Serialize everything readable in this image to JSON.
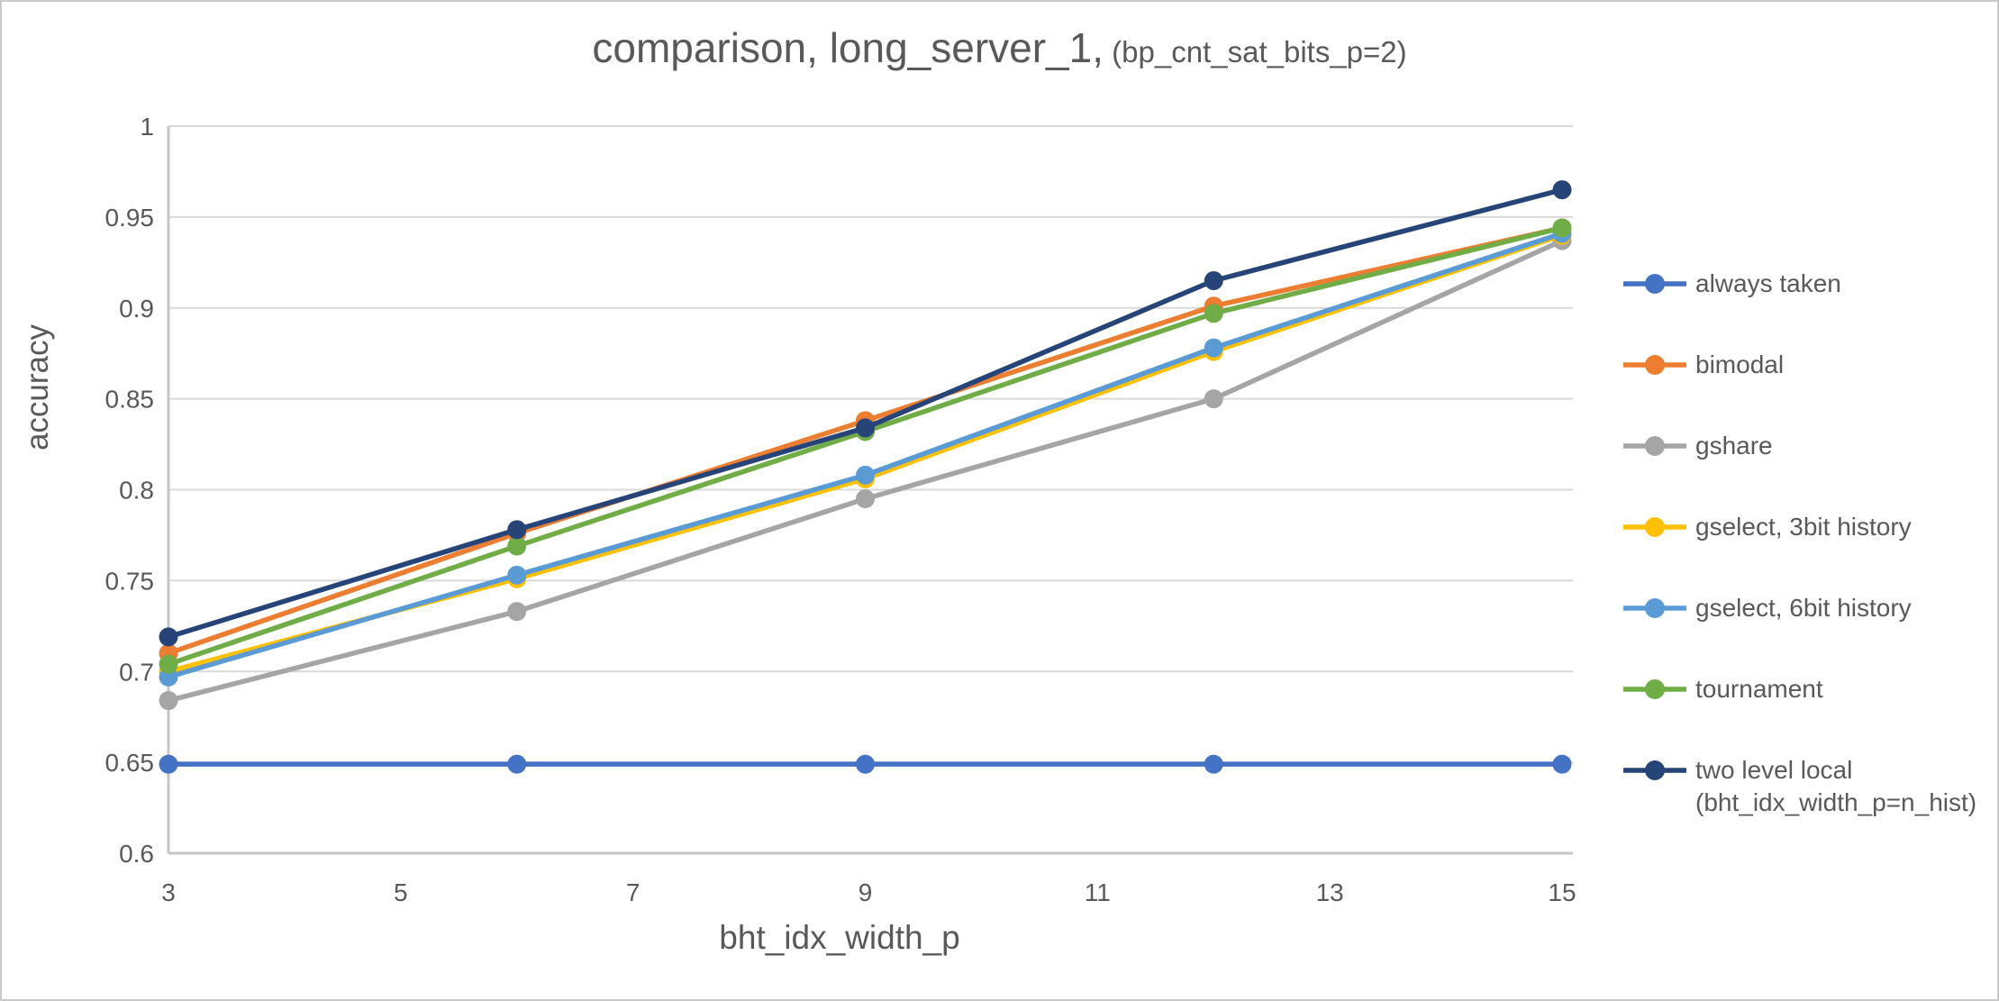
{
  "window": {
    "background": "#ffffff",
    "border_color": "#c9c9c9"
  },
  "title": {
    "main": "comparison, long_server_1,",
    "suffix": " (bp_cnt_sat_bits_p=2)"
  },
  "chart_data": {
    "type": "line",
    "title": "comparison, long_server_1, (bp_cnt_sat_bits_p=2)",
    "xlabel": "bht_idx_width_p",
    "ylabel": "accuracy",
    "xlim": [
      3,
      15
    ],
    "ylim": [
      0.6,
      1.0
    ],
    "grid": "horizontal",
    "legend_position": "right",
    "x": [
      3,
      6,
      9,
      12,
      15
    ],
    "x_tick_labels": [
      "3",
      "5",
      "7",
      "9",
      "11",
      "13",
      "15"
    ],
    "x_tick_values": [
      3,
      5,
      7,
      9,
      11,
      13,
      15
    ],
    "y_tick_labels": [
      "1",
      "0.95",
      "0.9",
      "0.85",
      "0.8",
      "0.75",
      "0.7",
      "0.65",
      "0.6"
    ],
    "y_tick_values": [
      1.0,
      0.95,
      0.9,
      0.85,
      0.8,
      0.75,
      0.7,
      0.65,
      0.6
    ],
    "series": [
      {
        "name": "always taken",
        "color": "#4472C4",
        "values": [
          0.649,
          0.649,
          0.649,
          0.649,
          0.649
        ]
      },
      {
        "name": "bimodal",
        "color": "#ED7D31",
        "values": [
          0.71,
          0.776,
          0.838,
          0.901,
          0.944
        ]
      },
      {
        "name": "gshare",
        "color": "#A5A5A5",
        "values": [
          0.684,
          0.733,
          0.795,
          0.85,
          0.937
        ]
      },
      {
        "name": "gselect, 3bit history",
        "color": "#FFC000",
        "values": [
          0.7,
          0.751,
          0.806,
          0.876,
          0.94
        ]
      },
      {
        "name": "gselect, 6bit history",
        "color": "#5B9BD5",
        "values": [
          0.697,
          0.753,
          0.808,
          0.878,
          0.941
        ]
      },
      {
        "name": "tournament",
        "color": "#70AD47",
        "values": [
          0.704,
          0.769,
          0.832,
          0.897,
          0.944
        ]
      },
      {
        "name": "two level local",
        "name_line2": "(bht_idx_width_p=n_hist)",
        "color": "#264478",
        "values": [
          0.719,
          0.778,
          0.834,
          0.915,
          0.965
        ]
      }
    ]
  },
  "style_colors": {
    "gridline": "#D9D9D9",
    "axis_line": "#C6C6C6",
    "tick_text": "#595959",
    "title_text": "#595959"
  }
}
